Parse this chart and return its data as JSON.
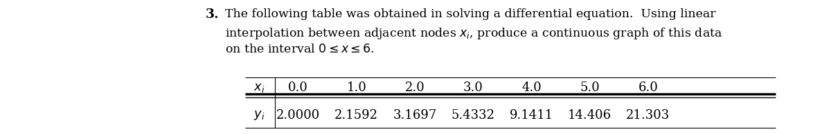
{
  "problem_number": "3.",
  "text_line1": "The following table was obtained in solving a differential equation.  Using linear",
  "text_line2": "interpolation between adjacent nodes $x_i$, produce a continuous graph of this data",
  "text_line3": "on the interval $0 \\leq x \\leq 6$.",
  "xi_label": "$x_i$",
  "yi_label": "$y_i$",
  "x_values": [
    "0.0",
    "1.0",
    "2.0",
    "3.0",
    "4.0",
    "5.0",
    "6.0"
  ],
  "y_values": [
    "2.0000",
    "2.1592",
    "3.1697",
    "5.4332",
    "9.1411",
    "14.406",
    "21.303"
  ],
  "bg_color": "#ffffff",
  "text_color": "#000000",
  "font_size_text": 12.5,
  "font_size_table": 13.0,
  "font_size_number": 13.5
}
